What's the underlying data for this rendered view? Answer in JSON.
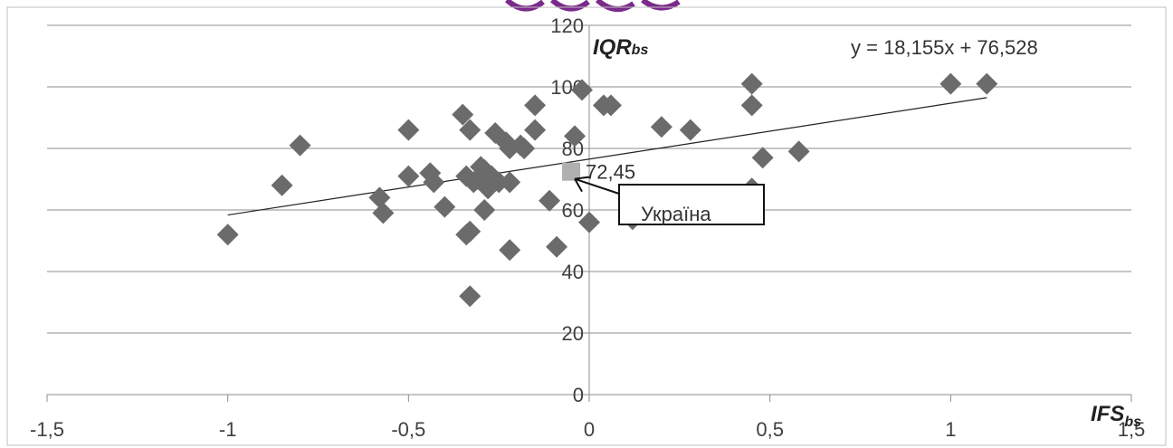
{
  "chart_data": {
    "type": "scatter",
    "x_axis_label": "IFS",
    "x_axis_label_subscript": "bs",
    "y_axis_label": "IQR",
    "y_axis_label_subscript": "bs",
    "xlim": [
      -1.5,
      1.5
    ],
    "ylim": [
      0,
      120
    ],
    "x_ticks": [
      "-1,5",
      "-1",
      "-0,5",
      "0",
      "0,5",
      "1",
      "1,5"
    ],
    "y_ticks": [
      "0",
      "20",
      "40",
      "60",
      "80",
      "100",
      "120"
    ],
    "x_tick_values": [
      -1.5,
      -1,
      -0.5,
      0,
      0.5,
      1,
      1.5
    ],
    "y_tick_values": [
      0,
      20,
      40,
      60,
      80,
      100,
      120
    ],
    "grid": "horizontal",
    "trendline": {
      "equation": "y = 18,155x + 76,528",
      "slope": 18.155,
      "intercept": 76.528,
      "x_range": [
        -1.0,
        1.1
      ]
    },
    "series": [
      {
        "color": "#6b6b6b",
        "marker": "diamond",
        "points": [
          [
            -1.0,
            52
          ],
          [
            -0.85,
            68
          ],
          [
            -0.8,
            81
          ],
          [
            -0.58,
            64
          ],
          [
            -0.57,
            59
          ],
          [
            -0.5,
            86
          ],
          [
            -0.5,
            71
          ],
          [
            -0.44,
            72
          ],
          [
            -0.43,
            69
          ],
          [
            -0.4,
            61
          ],
          [
            -0.35,
            91
          ],
          [
            -0.34,
            71
          ],
          [
            -0.34,
            52
          ],
          [
            -0.33,
            86
          ],
          [
            -0.33,
            53
          ],
          [
            -0.33,
            32
          ],
          [
            -0.32,
            69
          ],
          [
            -0.31,
            70
          ],
          [
            -0.3,
            74
          ],
          [
            -0.29,
            73
          ],
          [
            -0.29,
            60
          ],
          [
            -0.28,
            67
          ],
          [
            -0.27,
            71
          ],
          [
            -0.26,
            85
          ],
          [
            -0.25,
            69
          ],
          [
            -0.23,
            82
          ],
          [
            -0.22,
            80
          ],
          [
            -0.22,
            69
          ],
          [
            -0.22,
            47
          ],
          [
            -0.19,
            81
          ],
          [
            -0.18,
            80
          ],
          [
            -0.15,
            86
          ],
          [
            -0.15,
            94
          ],
          [
            -0.11,
            63
          ],
          [
            -0.09,
            48
          ],
          [
            -0.04,
            84
          ],
          [
            -0.02,
            99
          ],
          [
            0.0,
            56
          ],
          [
            0.04,
            94
          ],
          [
            0.06,
            94
          ],
          [
            0.12,
            57
          ],
          [
            0.2,
            87
          ],
          [
            0.28,
            86
          ],
          [
            0.45,
            101
          ],
          [
            0.45,
            94
          ],
          [
            0.45,
            67
          ],
          [
            0.48,
            77
          ],
          [
            0.58,
            79
          ],
          [
            1.0,
            101
          ],
          [
            1.1,
            101
          ]
        ]
      }
    ],
    "highlight": {
      "label": "72,45",
      "x": -0.05,
      "y": 72.45,
      "color": "#b0b0b0",
      "callout": "Україна"
    }
  }
}
